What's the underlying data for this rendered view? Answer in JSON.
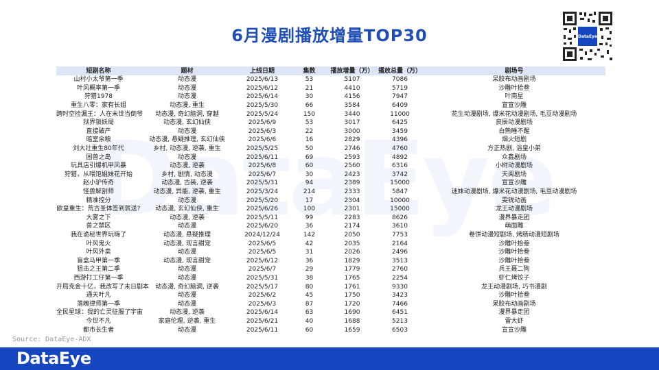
{
  "title": "6月漫剧播放增量TOP30",
  "watermark": "DataEye",
  "qr_label": "DataEye",
  "source": "Source: DataEye-ADX",
  "logo": "DataEye",
  "colors": {
    "title": "#1f4fb4",
    "header_bg": "#dde6f6",
    "footer_bg": "#1546c0"
  },
  "table": {
    "headers": [
      "短剧名称",
      "题材",
      "上线日期",
      "集数",
      "播放增量（万）",
      "播放总量（万）",
      "剧场号"
    ],
    "rows": [
      [
        "山村小太爷第一季",
        "动态漫",
        "2025/6/13",
        "53",
        "5107",
        "7086",
        "呆胶布动画剧场"
      ],
      [
        "叶风概率第一季",
        "动态漫",
        "2025/6/12",
        "21",
        "4410",
        "5719",
        "沙雕叶拾叁"
      ],
      [
        "狩猎1978",
        "动态漫",
        "2025/6/14",
        "30",
        "4156",
        "7947",
        "叶南星"
      ],
      [
        "重生八零：家有长姐",
        "动态漫, 重生",
        "2025/5/30",
        "66",
        "3584",
        "6409",
        "宣宣沙雕"
      ],
      [
        "跨时空捡漏王：人在末世当倒爷",
        "动态漫, 奇幻脑洞, 穿越",
        "2025/5/24",
        "150",
        "3440",
        "11000",
        "花生动漫剧场, 爆米花动漫剧场, 毛豆动漫剧场"
      ],
      [
        "狱界锁妖局",
        "动态漫, 玄幻仙侠",
        "2025/6/9",
        "53",
        "3017",
        "6425",
        "良辰动漫剧场"
      ],
      [
        "直接破产",
        "动态漫",
        "2025/6/3",
        "22",
        "3000",
        "3459",
        "白熊睡不醒"
      ],
      [
        "暗室余粮",
        "动态漫, 悬疑推理, 玄幻仙侠",
        "2025/6/6",
        "16",
        "2829",
        "4396",
        "烟火短剧"
      ],
      [
        "刘大壮重生80年代",
        "乡村, 动态漫, 逆袭, 重生",
        "2025/5/25",
        "50",
        "2746",
        "4760",
        "方正热剧, 浴皇小弟"
      ],
      [
        "困兽之岛",
        "动态漫",
        "2025/6/11",
        "69",
        "2593",
        "4892",
        "众鑫剧场"
      ],
      [
        "玩具店引爆机甲风暴",
        "动态漫, 逆袭",
        "2025/6/8",
        "60",
        "2560",
        "6316",
        "小树动漫剧场"
      ],
      [
        "狩猎，从喂饱姐妹花开始",
        "乡村, 剧情, 动态漫",
        "2025/6/7",
        "30",
        "2423",
        "3742",
        "天阅剧场"
      ],
      [
        "赵小驴传奇",
        "动态漫, 古装, 逆袭",
        "2025/5/31",
        "94",
        "2389",
        "15000",
        "宣宣沙雕"
      ],
      [
        "怪兽解剖师",
        "动态漫, 异能, 逆袭, 重生",
        "2025/3/24",
        "214",
        "2333",
        "5847",
        "迷妹动漫剧场, 爆米花动漫剧场, 毛豆动漫剧场"
      ],
      [
        "精准控分",
        "动态漫",
        "2025/5/20",
        "17",
        "2304",
        "10000",
        "雯锐动画"
      ],
      [
        "欧皇重生：荒古圣体签到就送?",
        "动态漫, 玄幻仙侠, 重生",
        "2025/6/26",
        "100",
        "2301",
        "15000",
        "龙王动漫剧场"
      ],
      [
        "大雾之下",
        "动态漫, 逆袭",
        "2025/5/11",
        "99",
        "2283",
        "8626",
        "漫界暴走团"
      ],
      [
        "兽之禁区",
        "动态漫",
        "2025/6/20",
        "36",
        "2174",
        "3610",
        "萌面雕"
      ],
      [
        "我在诡秘世界玩嗨了",
        "动态漫, 悬疑推理",
        "2024/12/24",
        "142",
        "2050",
        "7753",
        "卷饼动漫短剧场, 烤肠动漫短剧场"
      ],
      [
        "叶风鬼火",
        "动态漫, 现言甜宠",
        "2025/6/5",
        "42",
        "2035",
        "2164",
        "沙雕叶拾叁"
      ],
      [
        "叶风外卖",
        "动态漫",
        "2025/6/5",
        "31",
        "2026",
        "2496",
        "沙雕叶拾叁"
      ],
      [
        "盲盒马甲第一季",
        "动态漫, 现言甜宠",
        "2025/6/12",
        "36",
        "1829",
        "3513",
        "沙雕叶拾叁"
      ],
      [
        "狙击之王第二季",
        "动态漫",
        "2025/6/7",
        "29",
        "1779",
        "2760",
        "兵王聂二狗"
      ],
      [
        "西游打工仔第一季",
        "动态漫",
        "2025/5/31",
        "38",
        "1765",
        "2254",
        "虾仁烤饺子"
      ],
      [
        "开局克金十亿，我改写了末日剧本",
        "动态漫, 奇幻脑洞, 逆袭",
        "2025/5/17",
        "80",
        "1761",
        "9330",
        "龙王动漫剧场, 巧书漫剧"
      ],
      [
        "通天叶凡",
        "动态漫",
        "2025/6/2",
        "45",
        "1750",
        "3423",
        "沙雕叶拾叁"
      ],
      [
        "落魄律师第一季",
        "动态漫",
        "2025/6/3",
        "87",
        "1720",
        "7466",
        "呆胶布动画剧场"
      ],
      [
        "全民星球：我的亡灵征服了宇宙",
        "动态漫, 逆袭",
        "2025/6/14",
        "63",
        "1690",
        "6451",
        "漫界暴走团"
      ],
      [
        "今世不凡",
        "家庭伦理, 逆袭, 重生",
        "2025/6/21",
        "40",
        "1688",
        "5213",
        "雷大虾"
      ],
      [
        "都市长生者",
        "动态漫",
        "2025/6/11",
        "60",
        "1659",
        "6503",
        "宣宣沙雕"
      ]
    ]
  }
}
